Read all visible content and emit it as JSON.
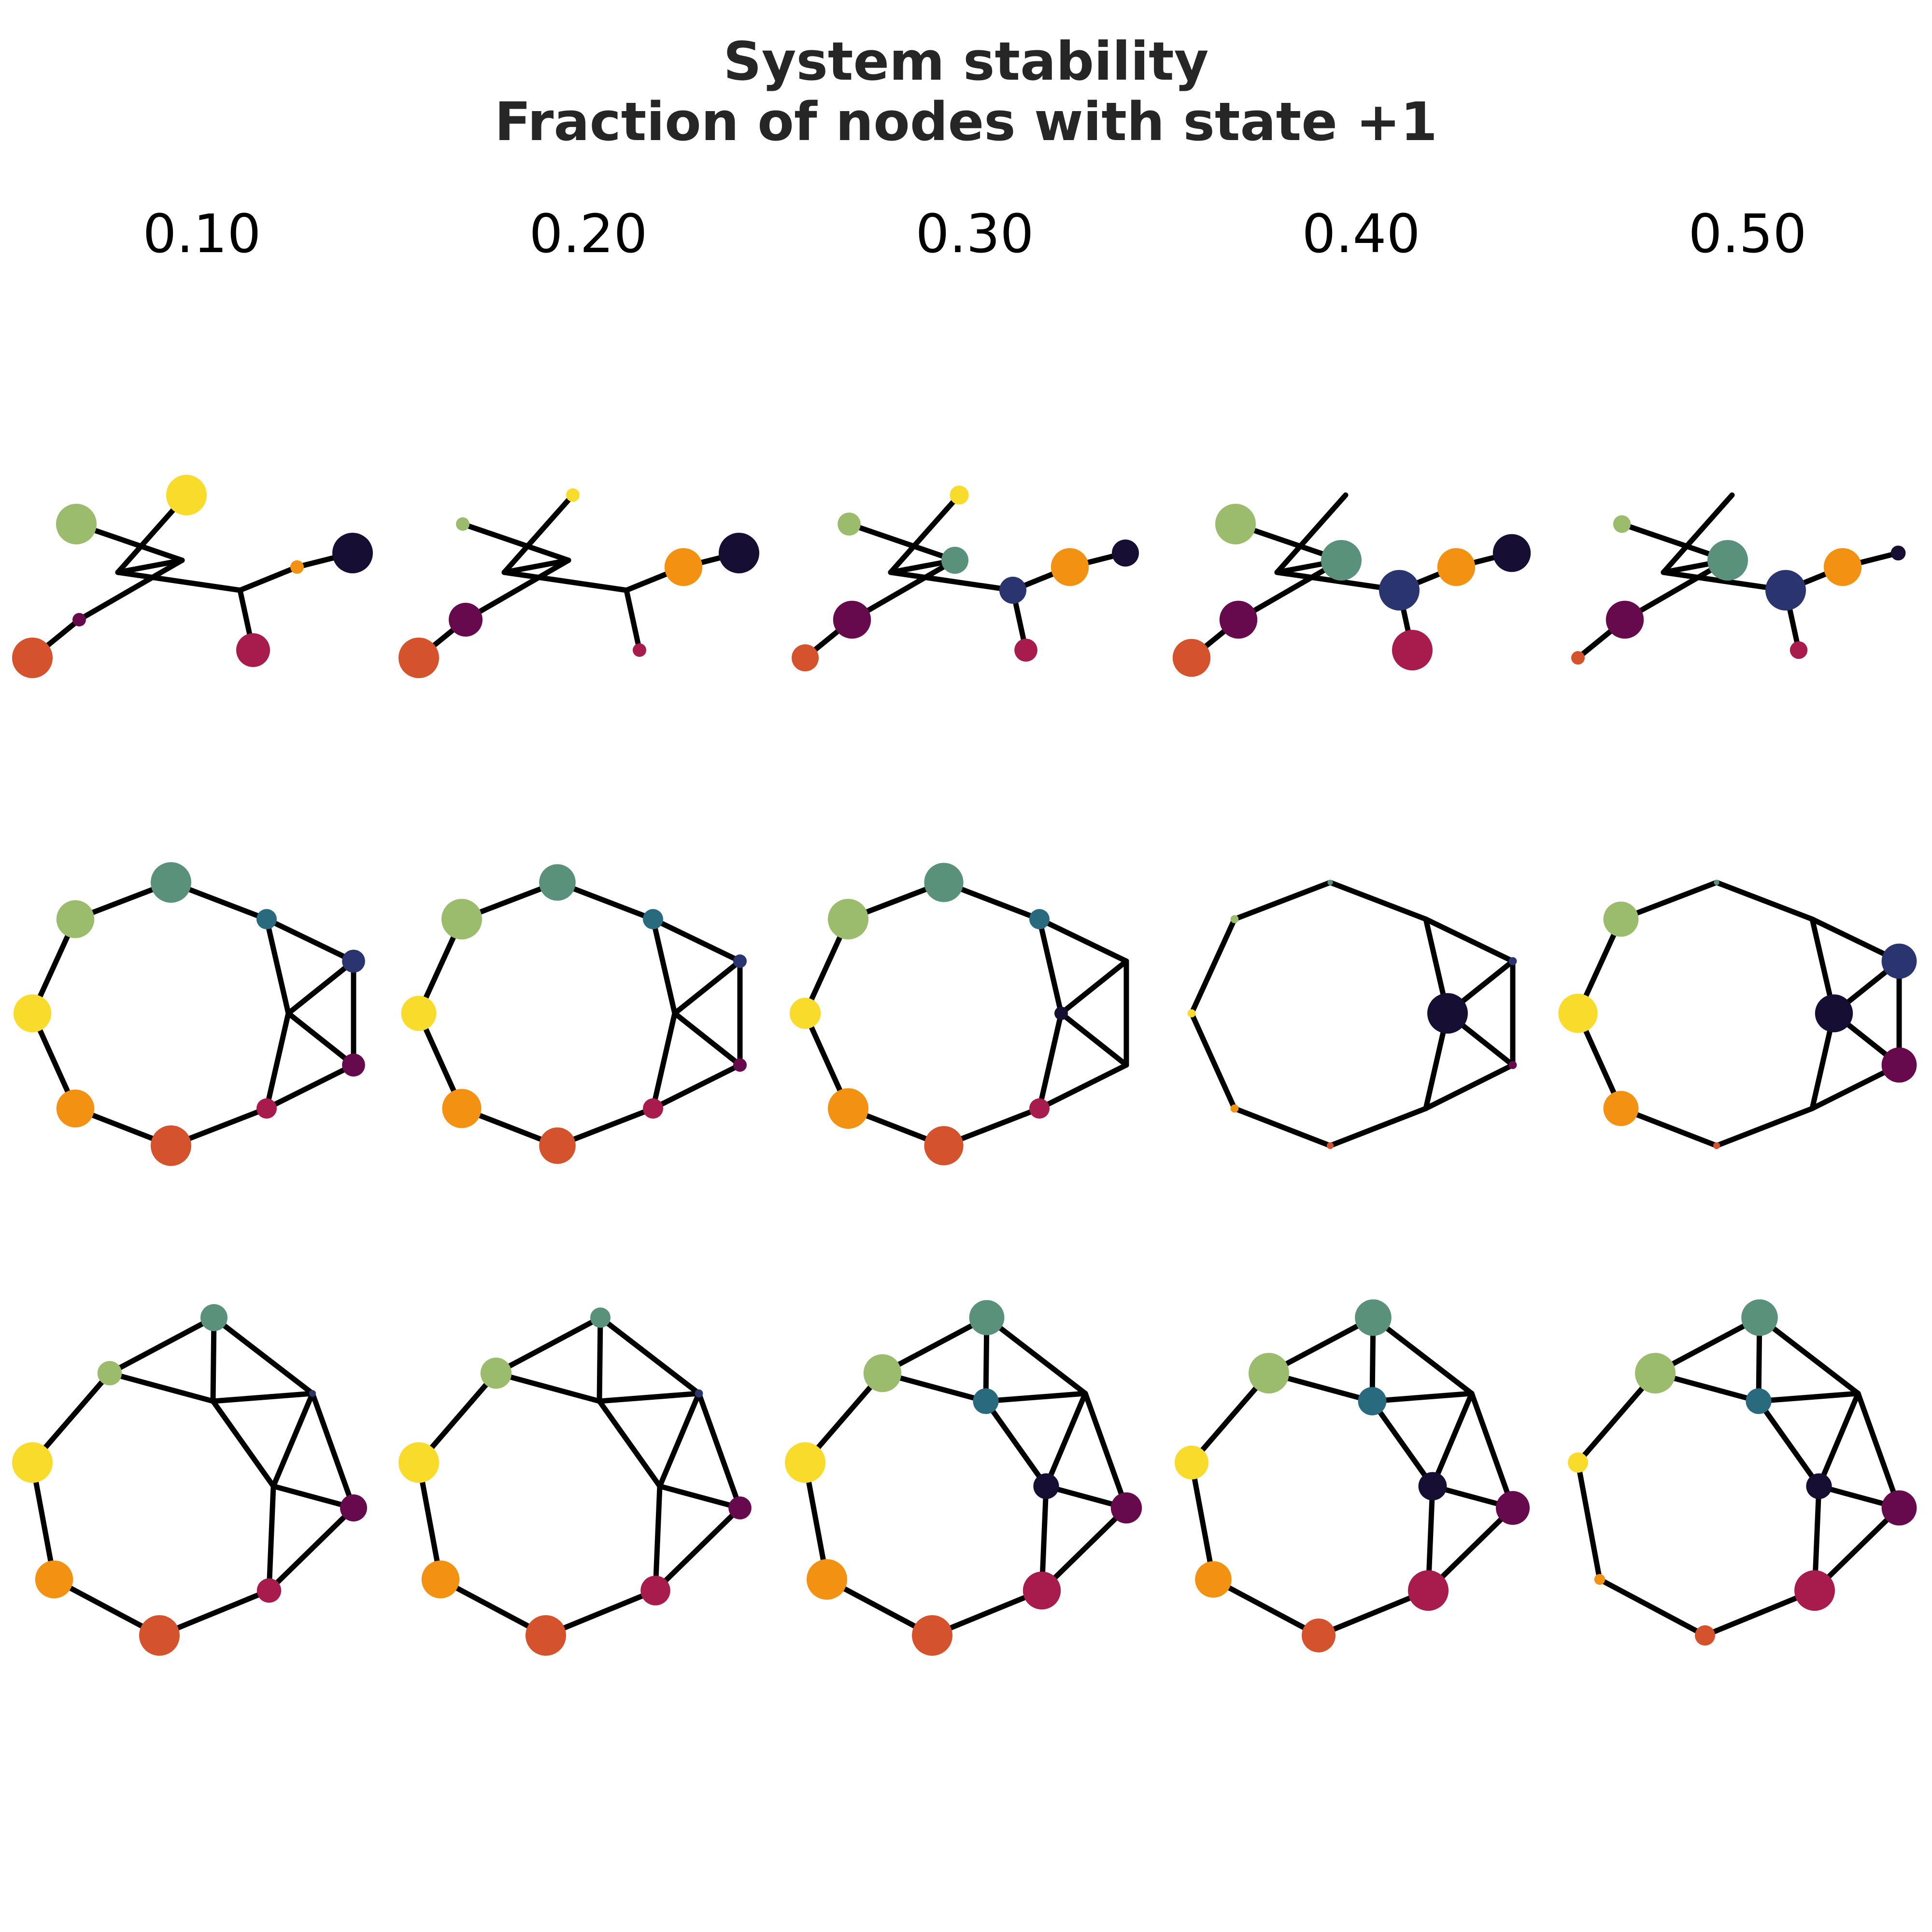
{
  "title": {
    "line1": "System stability",
    "line2": "Fraction of nodes with state +1"
  },
  "columns": [
    "0.10",
    "0.20",
    "0.30",
    "0.40",
    "0.50"
  ],
  "palette": {
    "c0": "#160f33",
    "c1": "#2a3570",
    "c2": "#660a4d",
    "c3": "#a81c4d",
    "c4": "#d4522c",
    "c5": "#f39212",
    "c6": "#f9dc2b",
    "c7": "#9bbb6d",
    "c8": "#5a917a",
    "c9": "#2a6a7f"
  },
  "graphs": [
    {
      "name": "tree",
      "nodes": [
        {
          "id": "a",
          "color": "c7"
        },
        {
          "id": "b",
          "color": "c6"
        },
        {
          "id": "c",
          "color": "c8"
        },
        {
          "id": "d",
          "color": "c2"
        },
        {
          "id": "e",
          "color": "c4"
        },
        {
          "id": "f",
          "color": "c1"
        },
        {
          "id": "g",
          "color": "c3"
        },
        {
          "id": "h",
          "color": "c5"
        },
        {
          "id": "i",
          "color": "c0"
        },
        {
          "id": "j",
          "color": "c9"
        }
      ],
      "edges": [
        [
          "a",
          "c"
        ],
        [
          "c",
          "d"
        ],
        [
          "d",
          "e"
        ],
        [
          "c",
          "j"
        ],
        [
          "j",
          "b"
        ],
        [
          "j",
          "f"
        ],
        [
          "f",
          "g"
        ],
        [
          "f",
          "h"
        ],
        [
          "h",
          "i"
        ]
      ],
      "sizes": [
        {
          "a": 3,
          "b": 3,
          "c": 0,
          "d": 1,
          "e": 3,
          "f": 0,
          "g": 2.5,
          "h": 1,
          "i": 3,
          "j": 0
        },
        {
          "a": 1,
          "b": 1,
          "c": 0,
          "d": 2.5,
          "e": 3,
          "f": 0,
          "g": 1,
          "h": 2.8,
          "i": 3,
          "j": 0
        },
        {
          "a": 1.7,
          "b": 1.4,
          "c": 2,
          "d": 2.8,
          "e": 2,
          "f": 2,
          "g": 1.7,
          "h": 2.8,
          "i": 2,
          "j": 0
        },
        {
          "a": 3,
          "b": 0,
          "c": 3,
          "d": 2.8,
          "e": 2.8,
          "f": 3,
          "g": 3,
          "h": 2.8,
          "i": 2.8,
          "j": 0
        },
        {
          "a": 1.3,
          "b": 0,
          "c": 3,
          "d": 2.8,
          "e": 1,
          "f": 3,
          "g": 1.3,
          "h": 2.8,
          "i": 1.1,
          "j": 0
        }
      ]
    },
    {
      "name": "ring",
      "nodes": [
        {
          "id": "a",
          "color": "c8"
        },
        {
          "id": "b",
          "color": "c9"
        },
        {
          "id": "c",
          "color": "c1"
        },
        {
          "id": "d",
          "color": "c2"
        },
        {
          "id": "e",
          "color": "c3"
        },
        {
          "id": "f",
          "color": "c4"
        },
        {
          "id": "g",
          "color": "c5"
        },
        {
          "id": "h",
          "color": "c6"
        },
        {
          "id": "i",
          "color": "c7"
        },
        {
          "id": "j",
          "color": "c0"
        }
      ],
      "edges": [
        [
          "a",
          "b"
        ],
        [
          "b",
          "c"
        ],
        [
          "c",
          "d"
        ],
        [
          "d",
          "e"
        ],
        [
          "e",
          "f"
        ],
        [
          "f",
          "g"
        ],
        [
          "g",
          "h"
        ],
        [
          "h",
          "i"
        ],
        [
          "i",
          "a"
        ],
        [
          "b",
          "j"
        ],
        [
          "c",
          "j"
        ],
        [
          "d",
          "j"
        ],
        [
          "e",
          "j"
        ]
      ],
      "sizes": [
        {
          "a": 3,
          "b": 1.5,
          "c": 1.7,
          "d": 1.7,
          "e": 1.5,
          "f": 3,
          "g": 2.8,
          "h": 2.8,
          "i": 2.8,
          "j": 0
        },
        {
          "a": 2.7,
          "b": 1.5,
          "c": 1,
          "d": 1,
          "e": 1.5,
          "f": 2.7,
          "g": 2.9,
          "h": 2.6,
          "i": 3,
          "j": 0
        },
        {
          "a": 2.9,
          "b": 1.5,
          "c": 0,
          "d": 0,
          "e": 1.5,
          "f": 2.9,
          "g": 3,
          "h": 2.3,
          "i": 3,
          "j": 1
        },
        {
          "a": 0.4,
          "b": 0,
          "c": 0.6,
          "d": 0.6,
          "e": 0,
          "f": 0.5,
          "g": 0.6,
          "h": 0.6,
          "i": 0.6,
          "j": 3
        },
        {
          "a": 0.4,
          "b": 0,
          "c": 2.6,
          "d": 2.6,
          "e": 0,
          "f": 0.5,
          "g": 2.6,
          "h": 2.9,
          "i": 2.6,
          "j": 2.8
        }
      ]
    },
    {
      "name": "planar",
      "nodes": [
        {
          "id": "a",
          "color": "c8"
        },
        {
          "id": "b",
          "color": "c7"
        },
        {
          "id": "c",
          "color": "c6"
        },
        {
          "id": "d",
          "color": "c5"
        },
        {
          "id": "e",
          "color": "c4"
        },
        {
          "id": "f",
          "color": "c3"
        },
        {
          "id": "g",
          "color": "c2"
        },
        {
          "id": "h",
          "color": "c1"
        },
        {
          "id": "i",
          "color": "c9"
        },
        {
          "id": "j",
          "color": "c0"
        }
      ],
      "edges": [
        [
          "a",
          "b"
        ],
        [
          "b",
          "c"
        ],
        [
          "c",
          "d"
        ],
        [
          "d",
          "e"
        ],
        [
          "e",
          "f"
        ],
        [
          "f",
          "g"
        ],
        [
          "g",
          "h"
        ],
        [
          "h",
          "a"
        ],
        [
          "a",
          "i"
        ],
        [
          "b",
          "i"
        ],
        [
          "i",
          "h"
        ],
        [
          "i",
          "j"
        ],
        [
          "h",
          "j"
        ],
        [
          "j",
          "g"
        ],
        [
          "j",
          "f"
        ]
      ],
      "sizes": [
        {
          "a": 2,
          "b": 1.8,
          "c": 3,
          "d": 2.8,
          "e": 3,
          "f": 1.8,
          "g": 2,
          "h": 0.5,
          "i": 0,
          "j": 0
        },
        {
          "a": 1.5,
          "b": 2.3,
          "c": 3,
          "d": 2.8,
          "e": 3,
          "f": 2.2,
          "g": 1.7,
          "h": 0.6,
          "i": 0,
          "j": 0
        },
        {
          "a": 2.6,
          "b": 2.8,
          "c": 3,
          "d": 3,
          "e": 3,
          "f": 2.8,
          "g": 2.3,
          "h": 0,
          "i": 1.9,
          "j": 1.9
        },
        {
          "a": 2.7,
          "b": 3,
          "c": 2.5,
          "d": 2.7,
          "e": 2.5,
          "f": 3,
          "g": 2.5,
          "h": 0,
          "i": 2.1,
          "j": 2.1
        },
        {
          "a": 2.7,
          "b": 3,
          "c": 1.5,
          "d": 0.8,
          "e": 1.5,
          "f": 3,
          "g": 2.6,
          "h": 0,
          "i": 1.9,
          "j": 1.9
        }
      ]
    }
  ]
}
